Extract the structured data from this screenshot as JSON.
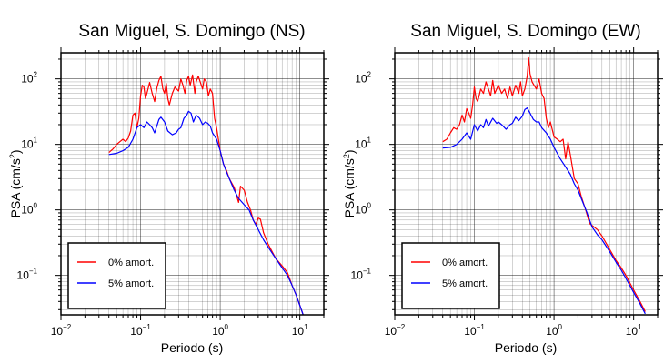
{
  "chart_data": [
    {
      "type": "line",
      "title": "San Miguel, S. Domingo (NS)",
      "xlabel": "Periodo (s)",
      "ylabel": "PSA (cm/s²)",
      "ylabel_parts": {
        "main": "PSA (cm/s",
        "sup": "2",
        "end": ")"
      },
      "xscale": "log",
      "yscale": "log",
      "xlim": [
        0.01,
        20
      ],
      "ylim": [
        0.025,
        250
      ],
      "grid": true,
      "legend_position": "bottom-left",
      "x_ticks": [
        {
          "base": "10",
          "exp": "−2",
          "value": 0.01
        },
        {
          "base": "10",
          "exp": "−1",
          "value": 0.1
        },
        {
          "base": "10",
          "exp": "0",
          "value": 1
        },
        {
          "base": "10",
          "exp": "1",
          "value": 10
        }
      ],
      "y_ticks": [
        {
          "base": "10",
          "exp": "−1",
          "value": 0.1
        },
        {
          "base": "10",
          "exp": "0",
          "value": 1
        },
        {
          "base": "10",
          "exp": "1",
          "value": 10
        },
        {
          "base": "10",
          "exp": "2",
          "value": 100
        }
      ],
      "series": [
        {
          "name": "0% amort.",
          "color": "#ff0000",
          "points": [
            [
              0.04,
              7.5
            ],
            [
              0.045,
              8.5
            ],
            [
              0.05,
              10
            ],
            [
              0.055,
              11
            ],
            [
              0.06,
              12
            ],
            [
              0.065,
              11
            ],
            [
              0.07,
              12.5
            ],
            [
              0.075,
              16
            ],
            [
              0.08,
              28
            ],
            [
              0.085,
              30
            ],
            [
              0.09,
              18
            ],
            [
              0.095,
              25
            ],
            [
              0.1,
              55
            ],
            [
              0.105,
              80
            ],
            [
              0.11,
              75
            ],
            [
              0.115,
              50
            ],
            [
              0.12,
              60
            ],
            [
              0.13,
              88
            ],
            [
              0.14,
              60
            ],
            [
              0.15,
              45
            ],
            [
              0.16,
              72
            ],
            [
              0.17,
              95
            ],
            [
              0.18,
              110
            ],
            [
              0.19,
              70
            ],
            [
              0.2,
              60
            ],
            [
              0.21,
              85
            ],
            [
              0.22,
              50
            ],
            [
              0.23,
              40
            ],
            [
              0.25,
              60
            ],
            [
              0.27,
              75
            ],
            [
              0.3,
              65
            ],
            [
              0.32,
              100
            ],
            [
              0.34,
              80
            ],
            [
              0.36,
              60
            ],
            [
              0.38,
              95
            ],
            [
              0.4,
              110
            ],
            [
              0.42,
              80
            ],
            [
              0.45,
              115
            ],
            [
              0.48,
              60
            ],
            [
              0.5,
              90
            ],
            [
              0.53,
              110
            ],
            [
              0.56,
              90
            ],
            [
              0.6,
              70
            ],
            [
              0.63,
              100
            ],
            [
              0.67,
              90
            ],
            [
              0.71,
              55
            ],
            [
              0.75,
              70
            ],
            [
              0.8,
              60
            ],
            [
              0.85,
              25
            ],
            [
              0.9,
              18
            ],
            [
              0.95,
              12
            ],
            [
              1.0,
              8
            ],
            [
              1.1,
              5
            ],
            [
              1.2,
              4
            ],
            [
              1.3,
              3
            ],
            [
              1.5,
              2.2
            ],
            [
              1.7,
              1.3
            ],
            [
              1.8,
              2.3
            ],
            [
              2.0,
              2.0
            ],
            [
              2.2,
              1.3
            ],
            [
              2.4,
              1.0
            ],
            [
              2.6,
              0.7
            ],
            [
              2.8,
              0.6
            ],
            [
              3.0,
              0.75
            ],
            [
              3.2,
              0.72
            ],
            [
              3.5,
              0.45
            ],
            [
              4.0,
              0.3
            ],
            [
              5.0,
              0.18
            ],
            [
              6.0,
              0.14
            ],
            [
              7.0,
              0.11
            ],
            [
              8.0,
              0.07
            ],
            [
              9.0,
              0.05
            ],
            [
              10.0,
              0.035
            ],
            [
              11.0,
              0.025
            ]
          ]
        },
        {
          "name": "5% amort.",
          "color": "#0000ff",
          "points": [
            [
              0.04,
              7
            ],
            [
              0.05,
              7.3
            ],
            [
              0.06,
              8
            ],
            [
              0.07,
              9
            ],
            [
              0.08,
              12
            ],
            [
              0.09,
              18
            ],
            [
              0.1,
              20
            ],
            [
              0.11,
              18
            ],
            [
              0.12,
              22
            ],
            [
              0.13,
              20
            ],
            [
              0.14,
              18
            ],
            [
              0.15,
              15
            ],
            [
              0.16,
              19
            ],
            [
              0.17,
              24
            ],
            [
              0.18,
              26
            ],
            [
              0.2,
              22
            ],
            [
              0.22,
              16
            ],
            [
              0.25,
              14
            ],
            [
              0.28,
              15
            ],
            [
              0.3,
              17
            ],
            [
              0.32,
              18
            ],
            [
              0.35,
              25
            ],
            [
              0.38,
              28
            ],
            [
              0.4,
              32
            ],
            [
              0.43,
              30
            ],
            [
              0.46,
              22
            ],
            [
              0.5,
              28
            ],
            [
              0.55,
              25
            ],
            [
              0.6,
              20
            ],
            [
              0.65,
              22
            ],
            [
              0.7,
              21
            ],
            [
              0.75,
              19
            ],
            [
              0.8,
              15
            ],
            [
              0.9,
              12
            ],
            [
              1.0,
              8
            ],
            [
              1.1,
              5
            ],
            [
              1.2,
              3.8
            ],
            [
              1.3,
              3
            ],
            [
              1.5,
              2
            ],
            [
              1.7,
              1.5
            ],
            [
              2.0,
              1.2
            ],
            [
              2.3,
              1.0
            ],
            [
              2.6,
              0.7
            ],
            [
              3.0,
              0.5
            ],
            [
              3.5,
              0.35
            ],
            [
              4.0,
              0.27
            ],
            [
              5.0,
              0.18
            ],
            [
              6.0,
              0.13
            ],
            [
              7.0,
              0.1
            ],
            [
              8.0,
              0.07
            ],
            [
              9.0,
              0.05
            ],
            [
              10.0,
              0.035
            ],
            [
              11.0,
              0.025
            ]
          ]
        }
      ]
    },
    {
      "type": "line",
      "title": "San Miguel, S. Domingo (EW)",
      "xlabel": "Periodo (s)",
      "ylabel": "PSA (cm/s²)",
      "ylabel_parts": {
        "main": "PSA (cm/s",
        "sup": "2",
        "end": ")"
      },
      "xscale": "log",
      "yscale": "log",
      "xlim": [
        0.01,
        20
      ],
      "ylim": [
        0.025,
        250
      ],
      "grid": true,
      "legend_position": "bottom-left",
      "x_ticks": [
        {
          "base": "10",
          "exp": "−2",
          "value": 0.01
        },
        {
          "base": "10",
          "exp": "−1",
          "value": 0.1
        },
        {
          "base": "10",
          "exp": "0",
          "value": 1
        },
        {
          "base": "10",
          "exp": "1",
          "value": 10
        }
      ],
      "y_ticks": [
        {
          "base": "10",
          "exp": "−1",
          "value": 0.1
        },
        {
          "base": "10",
          "exp": "0",
          "value": 1
        },
        {
          "base": "10",
          "exp": "1",
          "value": 10
        },
        {
          "base": "10",
          "exp": "2",
          "value": 100
        }
      ],
      "series": [
        {
          "name": "0% amort.",
          "color": "#ff0000",
          "points": [
            [
              0.04,
              11
            ],
            [
              0.045,
              12
            ],
            [
              0.05,
              15
            ],
            [
              0.055,
              18
            ],
            [
              0.06,
              17
            ],
            [
              0.065,
              20
            ],
            [
              0.07,
              28
            ],
            [
              0.075,
              22
            ],
            [
              0.08,
              35
            ],
            [
              0.085,
              30
            ],
            [
              0.09,
              25
            ],
            [
              0.095,
              40
            ],
            [
              0.1,
              75
            ],
            [
              0.105,
              50
            ],
            [
              0.11,
              45
            ],
            [
              0.12,
              70
            ],
            [
              0.13,
              60
            ],
            [
              0.14,
              90
            ],
            [
              0.15,
              70
            ],
            [
              0.16,
              55
            ],
            [
              0.17,
              95
            ],
            [
              0.18,
              60
            ],
            [
              0.2,
              80
            ],
            [
              0.22,
              60
            ],
            [
              0.24,
              70
            ],
            [
              0.26,
              50
            ],
            [
              0.28,
              75
            ],
            [
              0.3,
              55
            ],
            [
              0.33,
              80
            ],
            [
              0.36,
              60
            ],
            [
              0.38,
              90
            ],
            [
              0.4,
              55
            ],
            [
              0.43,
              70
            ],
            [
              0.46,
              110
            ],
            [
              0.48,
              210
            ],
            [
              0.5,
              120
            ],
            [
              0.53,
              90
            ],
            [
              0.56,
              80
            ],
            [
              0.6,
              70
            ],
            [
              0.65,
              100
            ],
            [
              0.7,
              60
            ],
            [
              0.75,
              50
            ],
            [
              0.8,
              25
            ],
            [
              0.85,
              18
            ],
            [
              0.9,
              22
            ],
            [
              1.0,
              13
            ],
            [
              1.1,
              12
            ],
            [
              1.2,
              11
            ],
            [
              1.3,
              12
            ],
            [
              1.4,
              6
            ],
            [
              1.5,
              11
            ],
            [
              1.6,
              7
            ],
            [
              1.8,
              3
            ],
            [
              2.0,
              2.5
            ],
            [
              2.2,
              1.6
            ],
            [
              2.5,
              1.0
            ],
            [
              2.8,
              0.62
            ],
            [
              3.0,
              0.58
            ],
            [
              3.5,
              0.5
            ],
            [
              4.0,
              0.4
            ],
            [
              5.0,
              0.25
            ],
            [
              6.0,
              0.17
            ],
            [
              7.0,
              0.13
            ],
            [
              8.0,
              0.1
            ],
            [
              10.0,
              0.06
            ],
            [
              12.0,
              0.04
            ],
            [
              14.0,
              0.028
            ]
          ]
        },
        {
          "name": "5% amort.",
          "color": "#0000ff",
          "points": [
            [
              0.04,
              8.8
            ],
            [
              0.05,
              9
            ],
            [
              0.06,
              10
            ],
            [
              0.07,
              12
            ],
            [
              0.08,
              15
            ],
            [
              0.09,
              12
            ],
            [
              0.1,
              20
            ],
            [
              0.11,
              16
            ],
            [
              0.12,
              20
            ],
            [
              0.13,
              18
            ],
            [
              0.14,
              24
            ],
            [
              0.15,
              19
            ],
            [
              0.17,
              25
            ],
            [
              0.19,
              21
            ],
            [
              0.2,
              22
            ],
            [
              0.22,
              20
            ],
            [
              0.25,
              17
            ],
            [
              0.28,
              20
            ],
            [
              0.3,
              21
            ],
            [
              0.33,
              26
            ],
            [
              0.36,
              23
            ],
            [
              0.4,
              27
            ],
            [
              0.43,
              34
            ],
            [
              0.46,
              36
            ],
            [
              0.5,
              30
            ],
            [
              0.55,
              24
            ],
            [
              0.6,
              22
            ],
            [
              0.65,
              22
            ],
            [
              0.7,
              18
            ],
            [
              0.8,
              15
            ],
            [
              0.9,
              12
            ],
            [
              1.0,
              9
            ],
            [
              1.2,
              6
            ],
            [
              1.4,
              4.5
            ],
            [
              1.6,
              3.5
            ],
            [
              1.8,
              2.5
            ],
            [
              2.0,
              2
            ],
            [
              2.3,
              1.3
            ],
            [
              2.6,
              0.9
            ],
            [
              3.0,
              0.55
            ],
            [
              3.5,
              0.42
            ],
            [
              4.0,
              0.35
            ],
            [
              5.0,
              0.23
            ],
            [
              6.0,
              0.16
            ],
            [
              7.0,
              0.12
            ],
            [
              8.0,
              0.09
            ],
            [
              10.0,
              0.055
            ],
            [
              12.0,
              0.037
            ],
            [
              14.0,
              0.026
            ]
          ]
        }
      ]
    }
  ]
}
